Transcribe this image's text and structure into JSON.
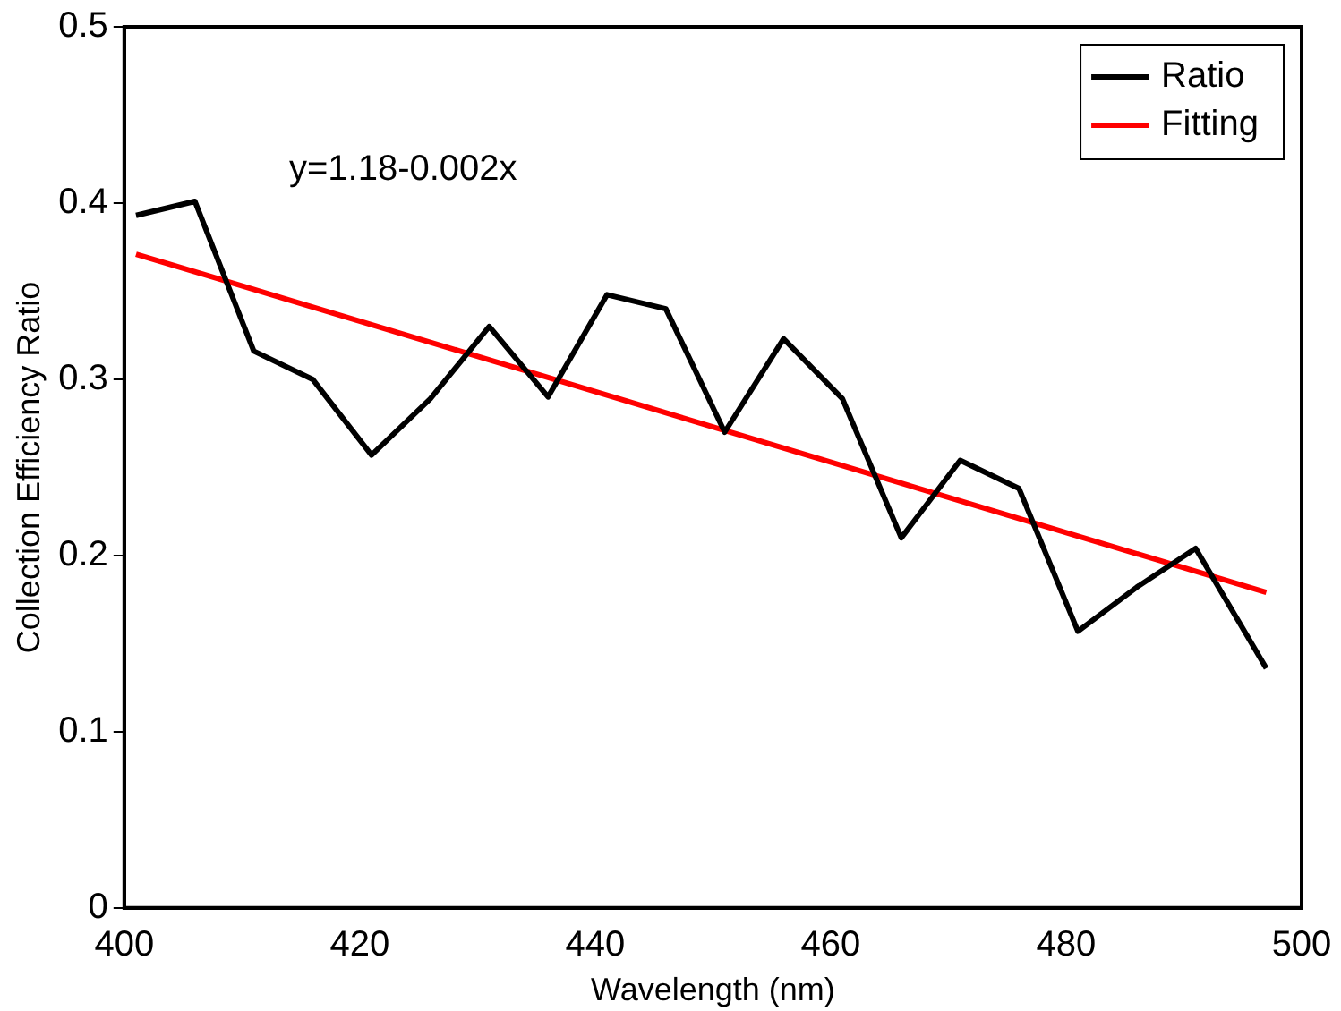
{
  "chart_data": {
    "type": "line",
    "xlabel": "Wavelength (nm)",
    "ylabel": "Collection Efficiency Ratio",
    "x": [
      401,
      406,
      411,
      416,
      421,
      426,
      431,
      436,
      441,
      446,
      451,
      456,
      461,
      466,
      471,
      476,
      481,
      486,
      491,
      497
    ],
    "series": [
      {
        "name": "Ratio",
        "color": "#000000",
        "values": [
          0.393,
          0.401,
          0.316,
          0.3,
          0.257,
          0.289,
          0.33,
          0.29,
          0.348,
          0.34,
          0.27,
          0.323,
          0.289,
          0.21,
          0.254,
          0.238,
          0.157,
          0.182,
          0.204,
          0.136
        ]
      },
      {
        "name": "Fitting",
        "color": "#ff0000",
        "x": [
          401,
          497
        ],
        "values": [
          0.371,
          0.179
        ]
      }
    ],
    "xlim": [
      400,
      500
    ],
    "xticks": [
      400,
      420,
      440,
      460,
      480,
      500
    ],
    "ylim": [
      0,
      0.5
    ],
    "yticks": [
      0,
      0.1,
      0.2,
      0.3,
      0.4,
      0.5
    ],
    "annotations": [
      "y=1.18-0.002x"
    ],
    "legend": "top right",
    "grid": false,
    "marker": "none",
    "line_style": "solid"
  }
}
